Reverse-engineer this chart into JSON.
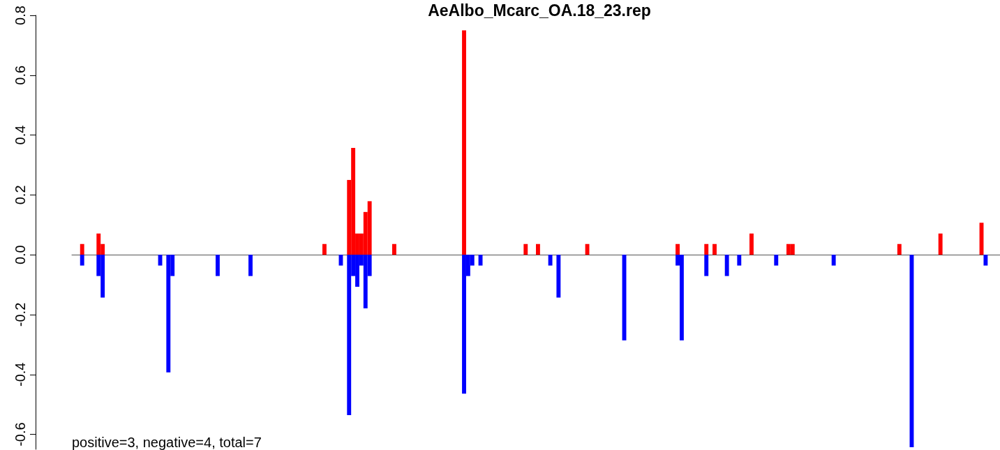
{
  "chart_data": {
    "type": "bar",
    "title": "AeAlbo_Mcarc_OA.18_23.rep",
    "annotations": [
      "positive=3, negative=4, total=7"
    ],
    "ylim": [
      -0.65,
      0.8
    ],
    "yticks": [
      {
        "value": -0.6,
        "label": "-0.6"
      },
      {
        "value": -0.4,
        "label": "-0.4"
      },
      {
        "value": -0.2,
        "label": "-0.2"
      },
      {
        "value": 0,
        "label": "0.0"
      },
      {
        "value": 0.2,
        "label": "0.2"
      },
      {
        "value": 0.4,
        "label": "0.4"
      },
      {
        "value": 0.6,
        "label": "0.6"
      },
      {
        "value": 0.8,
        "label": "0.8"
      }
    ],
    "tick_labels": "y",
    "categories": [
      null,
      null,
      null,
      null,
      null,
      null,
      null,
      null,
      null,
      null,
      null,
      null,
      null,
      null,
      null,
      null,
      null,
      null,
      null,
      null,
      null,
      null,
      null,
      null,
      null,
      null,
      null,
      null,
      null,
      null,
      null,
      null,
      null,
      null,
      null,
      null,
      null,
      null,
      null,
      null,
      null,
      null,
      null,
      null,
      null,
      null,
      null,
      null,
      null,
      null,
      null,
      null,
      null,
      null,
      null,
      null,
      null,
      null,
      null,
      null,
      null,
      null,
      null,
      null,
      null,
      null,
      null,
      null,
      null,
      null,
      null,
      null,
      null,
      null,
      null,
      null,
      null,
      null,
      null,
      null,
      null,
      null,
      null,
      null,
      null,
      null,
      null,
      null,
      null,
      null,
      null,
      null,
      null,
      null,
      null,
      null,
      null,
      null,
      null,
      null,
      null,
      null,
      null,
      null,
      null,
      null,
      null,
      null,
      null,
      null,
      null,
      null,
      null,
      null,
      null,
      null,
      null,
      null,
      null,
      null,
      null,
      null,
      null,
      null,
      null,
      null,
      null,
      null,
      null,
      null,
      null,
      null,
      null,
      null,
      null,
      null,
      null,
      null,
      null,
      null,
      null,
      null,
      null,
      null,
      null,
      null,
      null,
      null,
      null,
      null,
      null,
      null,
      null,
      null,
      null,
      null,
      null,
      null,
      null,
      null,
      null,
      null,
      null,
      null,
      null,
      null,
      null,
      null,
      null,
      null,
      null,
      null,
      null,
      null,
      null,
      null,
      null,
      null,
      null,
      null,
      null,
      null,
      null,
      null,
      null,
      null,
      null,
      null,
      null,
      null,
      null,
      null,
      null,
      null,
      null,
      null,
      null,
      null,
      null,
      null,
      null,
      null,
      null,
      null,
      null,
      null,
      null,
      null,
      null,
      null,
      null,
      null,
      null,
      null,
      null,
      null,
      null,
      null,
      null,
      null,
      null,
      null,
      null,
      null,
      null,
      null
    ],
    "series": [
      {
        "color": "#ff0000",
        "values": [
          null,
          null,
          0.036,
          null,
          null,
          null,
          0.071,
          0.036,
          null,
          null,
          null,
          null,
          null,
          null,
          null,
          null,
          null,
          null,
          null,
          null,
          null,
          null,
          null,
          null,
          null,
          null,
          null,
          null,
          null,
          null,
          null,
          null,
          null,
          null,
          null,
          null,
          null,
          null,
          null,
          null,
          null,
          null,
          null,
          null,
          null,
          null,
          null,
          null,
          null,
          null,
          null,
          null,
          null,
          null,
          null,
          null,
          null,
          null,
          null,
          null,
          null,
          0.036,
          null,
          null,
          null,
          null,
          null,
          0.25,
          0.357,
          0.071,
          0.071,
          0.143,
          0.179,
          null,
          null,
          null,
          null,
          null,
          0.036,
          null,
          null,
          null,
          null,
          null,
          null,
          null,
          null,
          null,
          null,
          null,
          null,
          null,
          null,
          null,
          null,
          0.75,
          null,
          null,
          null,
          null,
          null,
          null,
          null,
          null,
          null,
          null,
          null,
          null,
          null,
          null,
          0.036,
          null,
          null,
          0.036,
          null,
          null,
          null,
          null,
          null,
          null,
          null,
          null,
          null,
          null,
          null,
          0.036,
          null,
          null,
          null,
          null,
          null,
          null,
          null,
          null,
          null,
          null,
          null,
          null,
          null,
          null,
          null,
          null,
          null,
          null,
          null,
          null,
          null,
          0.036,
          null,
          null,
          null,
          null,
          null,
          null,
          0.036,
          null,
          0.036,
          null,
          null,
          null,
          null,
          null,
          null,
          null,
          null,
          0.071,
          null,
          null,
          null,
          null,
          null,
          null,
          null,
          null,
          0.036,
          0.036,
          null,
          null,
          null,
          null,
          null,
          null,
          null,
          null,
          null,
          null,
          null,
          null,
          null,
          null,
          null,
          null,
          null,
          null,
          null,
          null,
          null,
          null,
          null,
          null,
          null,
          0.036,
          null,
          null,
          null,
          null,
          null,
          null,
          null,
          null,
          null,
          0.071,
          null,
          null,
          null,
          null,
          null,
          null,
          null,
          null,
          null,
          0.107,
          null,
          null,
          null,
          null
        ]
      },
      {
        "color": "#0000ff",
        "values": [
          null,
          null,
          -0.036,
          null,
          null,
          null,
          -0.071,
          -0.143,
          null,
          null,
          null,
          null,
          null,
          null,
          null,
          null,
          null,
          null,
          null,
          null,
          null,
          -0.036,
          null,
          -0.393,
          -0.071,
          null,
          null,
          null,
          null,
          null,
          null,
          null,
          null,
          null,
          null,
          -0.071,
          null,
          null,
          null,
          null,
          null,
          null,
          null,
          -0.071,
          null,
          null,
          null,
          null,
          null,
          null,
          null,
          null,
          null,
          null,
          null,
          null,
          null,
          null,
          null,
          null,
          null,
          null,
          null,
          null,
          null,
          -0.036,
          null,
          -0.536,
          -0.071,
          -0.107,
          -0.036,
          -0.179,
          -0.071,
          null,
          null,
          null,
          null,
          null,
          null,
          null,
          null,
          null,
          null,
          null,
          null,
          null,
          null,
          null,
          null,
          null,
          null,
          null,
          null,
          null,
          null,
          -0.464,
          -0.071,
          -0.036,
          null,
          -0.036,
          null,
          null,
          null,
          null,
          null,
          null,
          null,
          null,
          null,
          null,
          null,
          null,
          null,
          null,
          null,
          null,
          -0.036,
          null,
          -0.143,
          null,
          null,
          null,
          null,
          null,
          null,
          null,
          null,
          null,
          null,
          null,
          null,
          null,
          null,
          null,
          -0.286,
          null,
          null,
          null,
          null,
          null,
          null,
          null,
          null,
          null,
          null,
          null,
          null,
          -0.036,
          -0.286,
          null,
          null,
          null,
          null,
          null,
          -0.071,
          null,
          null,
          null,
          null,
          -0.071,
          null,
          null,
          -0.036,
          null,
          null,
          null,
          null,
          null,
          null,
          null,
          null,
          -0.036,
          null,
          null,
          null,
          null,
          null,
          null,
          null,
          null,
          null,
          null,
          null,
          null,
          null,
          -0.036,
          null,
          null,
          null,
          null,
          null,
          null,
          null,
          null,
          null,
          null,
          null,
          null,
          null,
          null,
          null,
          null,
          null,
          null,
          -0.643,
          null,
          null,
          null,
          null,
          null,
          null,
          null,
          null,
          null,
          null,
          null,
          null,
          null,
          null,
          null,
          null,
          null,
          -0.036,
          null,
          null,
          null
        ]
      }
    ]
  }
}
